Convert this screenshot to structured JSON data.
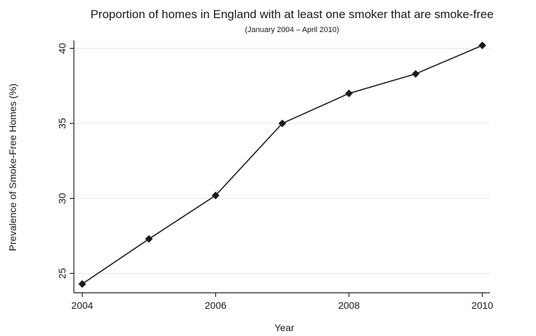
{
  "chart_data": {
    "type": "line",
    "title": "Proportion of homes in England with at least one smoker that are smoke-free",
    "subtitle": "(January 2004 – April 2010)",
    "xlabel": "Year",
    "ylabel": "Prevalence of Smoke-Free Homes (%)",
    "x_ticks": [
      "2004",
      "2006",
      "2008",
      "2010"
    ],
    "y_ticks": [
      "25",
      "30",
      "35",
      "40"
    ],
    "xlim": [
      2004,
      2010
    ],
    "ylim": [
      24.2,
      40.6
    ],
    "grid": "horizontal",
    "marker": "diamond",
    "colors": {
      "line": "#1a1a1a",
      "grid": "#e6e6e6"
    },
    "series": [
      {
        "x": [
          2004,
          2005,
          2006,
          2007,
          2008,
          2009,
          2010
        ],
        "values": [
          24.3,
          27.3,
          30.2,
          35.0,
          37.0,
          38.3,
          40.2
        ]
      }
    ]
  }
}
